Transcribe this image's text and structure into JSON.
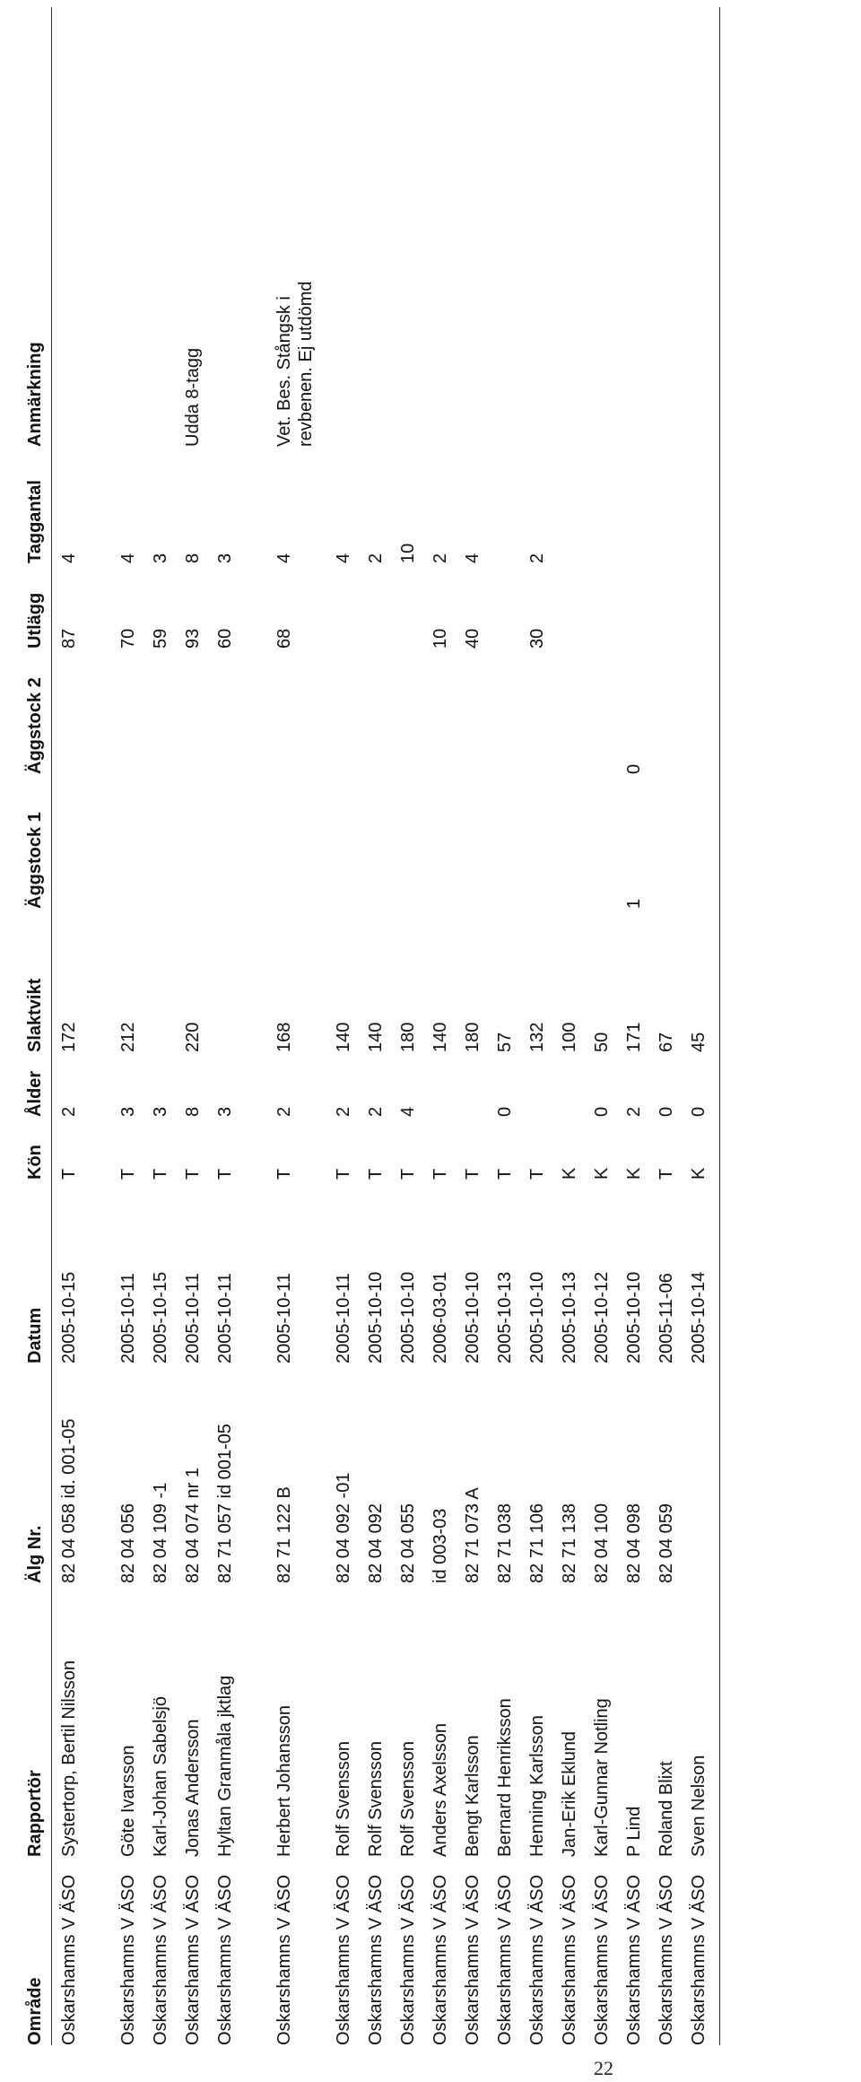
{
  "page_number": "22",
  "table": {
    "headers": [
      "Område",
      "Rapportör",
      "Älg Nr.",
      "Datum",
      "Kön",
      "Ålder",
      "Slaktvikt",
      "Äggstock 1",
      "Äggstock 2",
      "Utlägg",
      "Taggantal",
      "Anmärkning"
    ],
    "rows": [
      {
        "omrade": "Oskarshamns V ÄSO",
        "rapportor": "Systertorp, Bertil Nilsson",
        "alg_nr": "82 04 058 id. 001-05",
        "datum": "2005-10-15",
        "kon": "T",
        "alder": "2",
        "slaktvikt": "172",
        "aggstock1": "",
        "aggstock2": "",
        "utlagg": "87",
        "taggantal": "4",
        "anmarkning": ""
      },
      {
        "omrade": "Oskarshamns V ÄSO",
        "rapportor": "Göte Ivarsson",
        "alg_nr": "82 04 056",
        "datum": "2005-10-11",
        "kon": "T",
        "alder": "3",
        "slaktvikt": "212",
        "aggstock1": "",
        "aggstock2": "",
        "utlagg": "70",
        "taggantal": "4",
        "anmarkning": ""
      },
      {
        "omrade": "Oskarshamns V ÄSO",
        "rapportor": "Karl-Johan Sabelsjö",
        "alg_nr": "82 04 109 -1",
        "datum": "2005-10-15",
        "kon": "T",
        "alder": "3",
        "slaktvikt": "",
        "aggstock1": "",
        "aggstock2": "",
        "utlagg": "59",
        "taggantal": "3",
        "anmarkning": ""
      },
      {
        "omrade": "Oskarshamns V ÄSO",
        "rapportor": "Jonas Andersson",
        "alg_nr": "82 04 074 nr 1",
        "datum": "2005-10-11",
        "kon": "T",
        "alder": "8",
        "slaktvikt": "220",
        "aggstock1": "",
        "aggstock2": "",
        "utlagg": "93",
        "taggantal": "8",
        "anmarkning": "Udda 8-tagg"
      },
      {
        "omrade": "Oskarshamns V ÄSO",
        "rapportor": "Hyltan Granmåla jktlag",
        "alg_nr": "82 71 057 id 001-05",
        "datum": "2005-10-11",
        "kon": "T",
        "alder": "3",
        "slaktvikt": "",
        "aggstock1": "",
        "aggstock2": "",
        "utlagg": "60",
        "taggantal": "3",
        "anmarkning": ""
      },
      {
        "omrade": "Oskarshamns V ÄSO",
        "rapportor": "Herbert Johansson",
        "alg_nr": "82 71 122 B",
        "datum": "2005-10-11",
        "kon": "T",
        "alder": "2",
        "slaktvikt": "168",
        "aggstock1": "",
        "aggstock2": "",
        "utlagg": "68",
        "taggantal": "4",
        "anmarkning": "Vet. Bes. Stångsk i revbenen. Ej utdömd"
      },
      {
        "omrade": "Oskarshamns V ÄSO",
        "rapportor": "Rolf Svensson",
        "alg_nr": "82 04 092 -01",
        "datum": "2005-10-11",
        "kon": "T",
        "alder": "2",
        "slaktvikt": "140",
        "aggstock1": "",
        "aggstock2": "",
        "utlagg": "",
        "taggantal": "4",
        "anmarkning": ""
      },
      {
        "omrade": "Oskarshamns V ÄSO",
        "rapportor": "Rolf Svensson",
        "alg_nr": "82 04 092",
        "datum": "2005-10-10",
        "kon": "T",
        "alder": "2",
        "slaktvikt": "140",
        "aggstock1": "",
        "aggstock2": "",
        "utlagg": "",
        "taggantal": "2",
        "anmarkning": ""
      },
      {
        "omrade": "Oskarshamns V ÄSO",
        "rapportor": "Rolf Svensson",
        "alg_nr": "82 04 055",
        "datum": "2005-10-10",
        "kon": "T",
        "alder": "4",
        "slaktvikt": "180",
        "aggstock1": "",
        "aggstock2": "",
        "utlagg": "",
        "taggantal": "10",
        "anmarkning": ""
      },
      {
        "omrade": "Oskarshamns V ÄSO",
        "rapportor": "Anders Axelsson",
        "alg_nr": "id 003-03",
        "datum": "2006-03-01",
        "kon": "T",
        "alder": "",
        "slaktvikt": "140",
        "aggstock1": "",
        "aggstock2": "",
        "utlagg": "10",
        "taggantal": "2",
        "anmarkning": ""
      },
      {
        "omrade": "Oskarshamns V ÄSO",
        "rapportor": "Bengt Karlsson",
        "alg_nr": "82 71 073 A",
        "datum": "2005-10-10",
        "kon": "T",
        "alder": "",
        "slaktvikt": "180",
        "aggstock1": "",
        "aggstock2": "",
        "utlagg": "40",
        "taggantal": "4",
        "anmarkning": ""
      },
      {
        "omrade": "Oskarshamns V ÄSO",
        "rapportor": "Bernard Henriksson",
        "alg_nr": "82 71 038",
        "datum": "2005-10-13",
        "kon": "T",
        "alder": "0",
        "slaktvikt": "57",
        "aggstock1": "",
        "aggstock2": "",
        "utlagg": "",
        "taggantal": "",
        "anmarkning": ""
      },
      {
        "omrade": "Oskarshamns V ÄSO",
        "rapportor": "Henning Karlsson",
        "alg_nr": "82 71 106",
        "datum": "2005-10-10",
        "kon": "T",
        "alder": "",
        "slaktvikt": "132",
        "aggstock1": "",
        "aggstock2": "",
        "utlagg": "30",
        "taggantal": "2",
        "anmarkning": ""
      },
      {
        "omrade": "Oskarshamns V ÄSO",
        "rapportor": "Jan-Erik Eklund",
        "alg_nr": "82 71 138",
        "datum": "2005-10-13",
        "kon": "K",
        "alder": "",
        "slaktvikt": "100",
        "aggstock1": "",
        "aggstock2": "",
        "utlagg": "",
        "taggantal": "",
        "anmarkning": ""
      },
      {
        "omrade": "Oskarshamns V ÄSO",
        "rapportor": "Karl-Gunnar Notling",
        "alg_nr": "82 04 100",
        "datum": "2005-10-12",
        "kon": "K",
        "alder": "0",
        "slaktvikt": "50",
        "aggstock1": "",
        "aggstock2": "",
        "utlagg": "",
        "taggantal": "",
        "anmarkning": ""
      },
      {
        "omrade": "Oskarshamns V ÄSO",
        "rapportor": "P Lind",
        "alg_nr": "82 04 098",
        "datum": "2005-10-10",
        "kon": "K",
        "alder": "2",
        "slaktvikt": "171",
        "aggstock1": "1",
        "aggstock2": "0",
        "utlagg": "",
        "taggantal": "",
        "anmarkning": ""
      },
      {
        "omrade": "Oskarshamns V ÄSO",
        "rapportor": "Roland Blixt",
        "alg_nr": "82 04 059",
        "datum": "2005-11-06",
        "kon": "T",
        "alder": "0",
        "slaktvikt": "67",
        "aggstock1": "",
        "aggstock2": "",
        "utlagg": "",
        "taggantal": "",
        "anmarkning": ""
      },
      {
        "omrade": "Oskarshamns V ÄSO",
        "rapportor": "Sven Nelson",
        "alg_nr": "",
        "datum": "2005-10-14",
        "kon": "K",
        "alder": "0",
        "slaktvikt": "45",
        "aggstock1": "",
        "aggstock2": "",
        "utlagg": "",
        "taggantal": "",
        "anmarkning": ""
      }
    ]
  }
}
